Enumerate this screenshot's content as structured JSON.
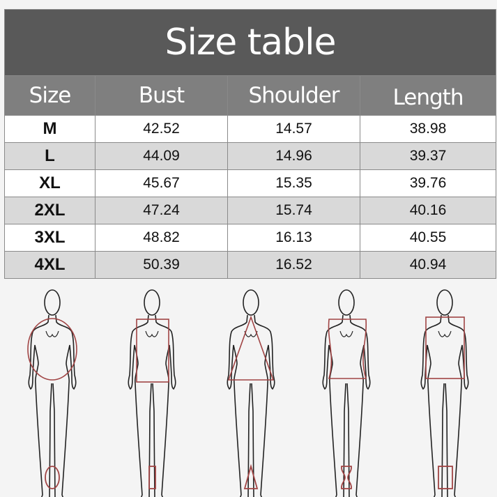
{
  "title": "Size table",
  "columns": [
    "Size",
    "Bust",
    "Shoulder",
    "Length"
  ],
  "rows": [
    [
      "M",
      "42.52",
      "14.57",
      "38.98"
    ],
    [
      "L",
      "44.09",
      "14.96",
      "39.37"
    ],
    [
      "XL",
      "45.67",
      "15.35",
      "39.76"
    ],
    [
      "2XL",
      "47.24",
      "15.74",
      "40.16"
    ],
    [
      "3XL",
      "48.82",
      "16.13",
      "40.55"
    ],
    [
      "4XL",
      "50.39",
      "16.52",
      "40.94"
    ]
  ],
  "body_shapes": [
    "O-shape (oval)",
    "I-shape (straight)",
    "A-shape (triangle)",
    "X-shape (hourglass)",
    "H-shape (rectangle)"
  ],
  "colors": {
    "title_bg": "#595959",
    "header_bg": "#7f7f7f",
    "alt_row": "#d9d9d9",
    "shape_outline": "#a04444"
  }
}
